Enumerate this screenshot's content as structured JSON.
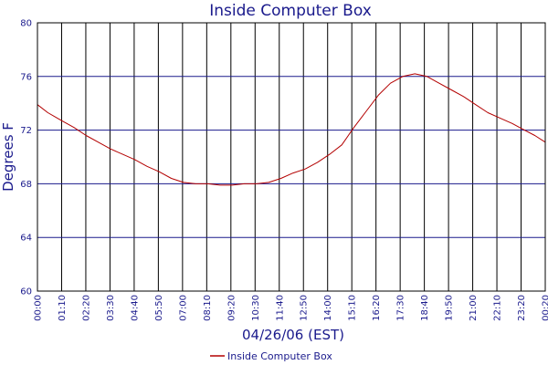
{
  "chart_data": {
    "type": "line",
    "title": "Inside Computer Box",
    "xlabel": "04/26/06 (EST)",
    "ylabel": "Degrees F",
    "ylim": [
      60,
      80
    ],
    "yticks": [
      "60",
      "64",
      "68",
      "72",
      "76",
      "80"
    ],
    "xticks": [
      "00:00",
      "01:10",
      "02:20",
      "03:30",
      "04:40",
      "05:50",
      "07:00",
      "08:10",
      "09:20",
      "10:30",
      "11:40",
      "12:50",
      "14:00",
      "15:10",
      "16:20",
      "17:30",
      "18:40",
      "19:50",
      "21:00",
      "22:10",
      "23:20",
      "00:20"
    ],
    "grid": true,
    "legend_position": "bottom",
    "series": [
      {
        "name": "Inside Computer Box",
        "color": "#b30000",
        "x": [
          "00:00",
          "00:30",
          "01:10",
          "01:45",
          "02:20",
          "02:55",
          "03:30",
          "04:05",
          "04:40",
          "05:15",
          "05:50",
          "06:25",
          "07:00",
          "07:35",
          "08:10",
          "08:45",
          "09:20",
          "09:55",
          "10:30",
          "11:05",
          "11:40",
          "12:15",
          "12:50",
          "13:25",
          "14:00",
          "14:35",
          "15:10",
          "15:45",
          "16:20",
          "16:55",
          "17:30",
          "18:05",
          "18:40",
          "19:15",
          "19:50",
          "20:25",
          "21:00",
          "21:35",
          "22:10",
          "22:45",
          "23:20",
          "23:50",
          "00:20"
        ],
        "y": [
          73.9,
          73.3,
          72.7,
          72.2,
          71.6,
          71.1,
          70.6,
          70.2,
          69.8,
          69.3,
          68.9,
          68.4,
          68.1,
          68.0,
          68.0,
          67.9,
          67.9,
          68.0,
          68.0,
          68.1,
          68.4,
          68.8,
          69.1,
          69.6,
          70.2,
          70.9,
          72.2,
          73.4,
          74.6,
          75.5,
          76.0,
          76.2,
          76.0,
          75.5,
          75.0,
          74.5,
          73.9,
          73.3,
          72.9,
          72.5,
          72.0,
          71.6,
          71.1
        ]
      }
    ]
  }
}
